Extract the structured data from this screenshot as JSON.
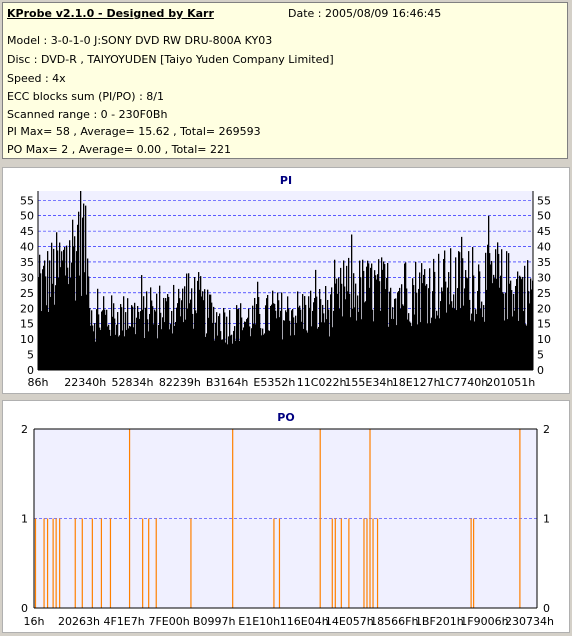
{
  "header": {
    "app_title": "KProbe v2.1.0 - Designed by Karr",
    "date": "Date : 2005/08/09 16:46:45",
    "model": "Model : 3-0-1-0 J:SONY    DVD RW DRU-800A  KY03",
    "disc": "Disc : DVD-R , TAIYOYUDEN [Taiyo Yuden Company Limited]",
    "speed": "Speed : 4x",
    "ecc": "ECC blocks sum (PI/PO) : 8/1",
    "range": "Scanned range : 0 - 230F0Bh",
    "pi_stats": "PI Max= 58 , Average= 15.62 , Total= 269593",
    "po_stats": "PO Max= 2 , Average= 0.00 , Total= 221"
  },
  "colors": {
    "pi_bars": "#000000",
    "po_bars": "#ff8000",
    "plot_bg": "#f0f0ff",
    "title": "#000080",
    "grid": "#0000ff"
  },
  "chart_data": [
    {
      "type": "bar",
      "title": "PI",
      "ylim": [
        0,
        58
      ],
      "yticks": [
        0,
        5,
        10,
        15,
        20,
        25,
        30,
        35,
        40,
        45,
        50,
        55
      ],
      "x_tick_labels": [
        "86h",
        "22340h",
        "52834h",
        "82239h",
        "B3164h",
        "E5352h",
        "11C022h",
        "155E34h",
        "18E127h",
        "1C7740h",
        "201051h"
      ],
      "grid": true,
      "profile": [
        {
          "x": 0.0,
          "y": 32
        },
        {
          "x": 0.05,
          "y": 40
        },
        {
          "x": 0.08,
          "y": 50
        },
        {
          "x": 0.09,
          "y": 53
        },
        {
          "x": 0.11,
          "y": 20
        },
        {
          "x": 0.25,
          "y": 22
        },
        {
          "x": 0.32,
          "y": 28
        },
        {
          "x": 0.34,
          "y": 22
        },
        {
          "x": 0.38,
          "y": 18
        },
        {
          "x": 0.5,
          "y": 22
        },
        {
          "x": 0.6,
          "y": 24
        },
        {
          "x": 0.61,
          "y": 28
        },
        {
          "x": 0.63,
          "y": 31
        },
        {
          "x": 0.76,
          "y": 31
        },
        {
          "x": 0.79,
          "y": 33
        },
        {
          "x": 0.92,
          "y": 34
        },
        {
          "x": 1.0,
          "y": 31
        }
      ]
    },
    {
      "type": "bar",
      "title": "PO",
      "ylim": [
        0,
        2
      ],
      "yticks": [
        0,
        1,
        2
      ],
      "x_tick_labels": [
        "16h",
        "20263h",
        "4F1E7h",
        "7FE00h",
        "B0997h",
        "E1E10h",
        "116E04h",
        "14E057h",
        "18566Fh",
        "1BF201h",
        "1F9006h",
        "230734h"
      ],
      "grid": true,
      "x": [
        0.003,
        0.02,
        0.027,
        0.038,
        0.044,
        0.051,
        0.082,
        0.096,
        0.116,
        0.134,
        0.152,
        0.19,
        0.216,
        0.228,
        0.243,
        0.312,
        0.395,
        0.477,
        0.488,
        0.569,
        0.593,
        0.599,
        0.611,
        0.626,
        0.656,
        0.662,
        0.668,
        0.674,
        0.683,
        0.869,
        0.874,
        0.966
      ],
      "values": [
        1,
        1,
        1,
        1,
        1,
        1,
        1,
        1,
        1,
        1,
        1,
        2,
        1,
        1,
        1,
        1,
        2,
        1,
        1,
        2,
        1,
        1,
        1,
        1,
        1,
        1,
        2,
        1,
        1,
        1,
        1,
        2
      ]
    }
  ]
}
